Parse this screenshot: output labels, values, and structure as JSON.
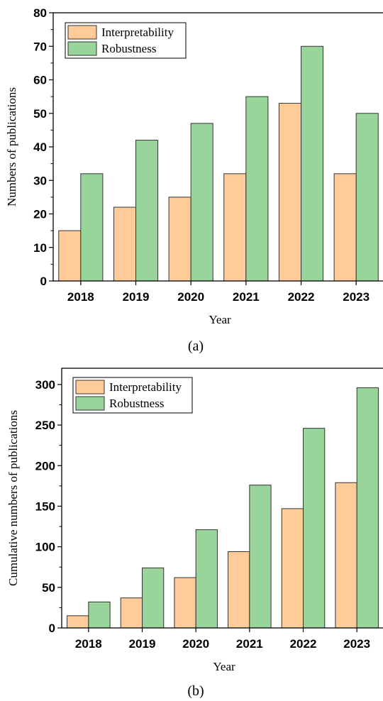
{
  "chart_data": [
    {
      "type": "bar",
      "categories": [
        "2018",
        "2019",
        "2020",
        "2021",
        "2022",
        "2023"
      ],
      "series": [
        {
          "name": "Interpretability",
          "values": [
            15,
            22,
            25,
            32,
            53,
            32
          ],
          "color": "#FFCC99"
        },
        {
          "name": "Robustness",
          "values": [
            32,
            42,
            47,
            55,
            70,
            50
          ],
          "color": "#99D59A"
        }
      ],
      "xlabel": "Year",
      "ylabel": "Numbers of publications",
      "ylim": [
        0,
        80
      ],
      "yticks": [
        0,
        10,
        20,
        30,
        40,
        50,
        60,
        70,
        80
      ],
      "legend": "top-left",
      "grid": false,
      "caption": "(a)"
    },
    {
      "type": "bar",
      "categories": [
        "2018",
        "2019",
        "2020",
        "2021",
        "2022",
        "2023"
      ],
      "series": [
        {
          "name": "Interpretability",
          "values": [
            15,
            37,
            62,
            94,
            147,
            179
          ],
          "color": "#FFCC99"
        },
        {
          "name": "Robustness",
          "values": [
            32,
            74,
            121,
            176,
            246,
            296
          ],
          "color": "#99D59A"
        }
      ],
      "xlabel": "Year",
      "ylabel": "Cumulative numbers of publications",
      "ylim": [
        0,
        320
      ],
      "yticks": [
        0,
        50,
        100,
        150,
        200,
        250,
        300
      ],
      "legend": "top-left",
      "grid": false,
      "caption": "(b)"
    }
  ]
}
